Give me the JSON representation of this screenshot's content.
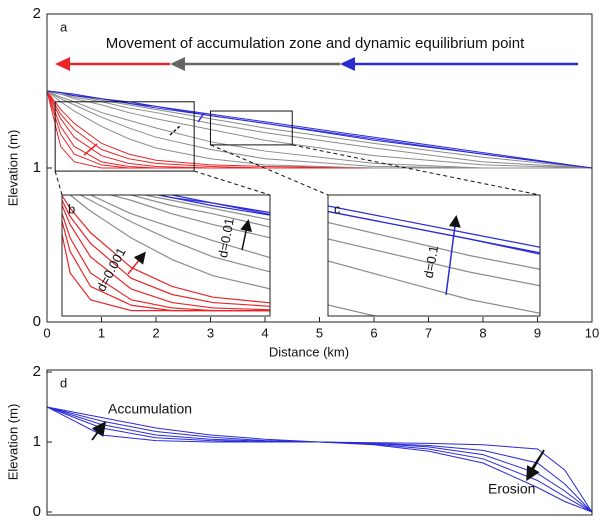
{
  "chart_data": [
    {
      "type": "line",
      "label": "a",
      "title": "Movement of accumulation zone and dynamic equilibrium point",
      "xlabel": "Distance (km)",
      "ylabel": "Elevation (m)",
      "xlim": [
        0,
        10
      ],
      "ylim": [
        0,
        2
      ],
      "xticks": [
        0,
        1,
        2,
        3,
        4,
        5,
        6,
        7,
        8,
        9,
        10
      ],
      "yticks": [
        0,
        1,
        2
      ],
      "x": [
        0,
        0.25,
        0.5,
        1,
        1.5,
        2,
        3,
        4,
        6,
        8,
        10
      ],
      "series": [
        {
          "color": "#e8262a",
          "values": [
            1.5,
            1.14,
            1.04,
            1.0,
            1.0,
            1.0,
            1.0,
            1.0,
            1.0,
            1.0,
            1.0
          ]
        },
        {
          "color": "#e8262a",
          "values": [
            1.5,
            1.22,
            1.09,
            1.02,
            1.0,
            1.0,
            1.0,
            1.0,
            1.0,
            1.0,
            1.0
          ]
        },
        {
          "color": "#e8262a",
          "values": [
            1.5,
            1.27,
            1.14,
            1.04,
            1.01,
            1.0,
            1.0,
            1.0,
            1.0,
            1.0,
            1.0
          ]
        },
        {
          "color": "#e8262a",
          "values": [
            1.5,
            1.32,
            1.2,
            1.08,
            1.03,
            1.01,
            1.0,
            1.0,
            1.0,
            1.0,
            1.0
          ]
        },
        {
          "color": "#e8262a",
          "values": [
            1.5,
            1.35,
            1.25,
            1.12,
            1.06,
            1.03,
            1.01,
            1.0,
            1.0,
            1.0,
            1.0
          ]
        },
        {
          "color": "#e8262a",
          "values": [
            1.5,
            1.38,
            1.29,
            1.16,
            1.09,
            1.05,
            1.02,
            1.01,
            1.0,
            1.0,
            1.0
          ]
        },
        {
          "color": "#8c8c8c",
          "values": [
            1.5,
            1.43,
            1.37,
            1.27,
            1.19,
            1.13,
            1.06,
            1.02,
            1.0,
            1.0,
            1.0
          ]
        },
        {
          "color": "#8c8c8c",
          "values": [
            1.5,
            1.45,
            1.41,
            1.33,
            1.26,
            1.2,
            1.12,
            1.06,
            1.01,
            1.0,
            1.0
          ]
        },
        {
          "color": "#8c8c8c",
          "values": [
            1.5,
            1.46,
            1.43,
            1.36,
            1.31,
            1.26,
            1.17,
            1.11,
            1.03,
            1.0,
            1.0
          ]
        },
        {
          "color": "#8c8c8c",
          "values": [
            1.5,
            1.48,
            1.45,
            1.41,
            1.36,
            1.32,
            1.25,
            1.18,
            1.08,
            1.02,
            1.0
          ]
        },
        {
          "color": "#8c8c8c",
          "values": [
            1.5,
            1.48,
            1.46,
            1.43,
            1.39,
            1.36,
            1.29,
            1.23,
            1.13,
            1.04,
            1.0
          ]
        },
        {
          "color": "#8c8c8c",
          "values": [
            1.5,
            1.48,
            1.47,
            1.44,
            1.41,
            1.38,
            1.32,
            1.26,
            1.16,
            1.07,
            1.0
          ]
        },
        {
          "color": "#2b2bd6",
          "values": [
            1.5,
            1.49,
            1.47,
            1.45,
            1.42,
            1.39,
            1.34,
            1.29,
            1.18,
            1.09,
            1.0
          ]
        },
        {
          "color": "#2b2bd6",
          "values": [
            1.5,
            1.49,
            1.47,
            1.45,
            1.42,
            1.4,
            1.34,
            1.29,
            1.19,
            1.09,
            1.0
          ]
        },
        {
          "color": "#2b2bd6",
          "values": [
            1.5,
            1.49,
            1.48,
            1.45,
            1.43,
            1.4,
            1.35,
            1.3,
            1.2,
            1.1,
            1.0
          ]
        }
      ]
    },
    {
      "type": "inset",
      "label": "b",
      "xlim": [
        0.15,
        2.7
      ],
      "ylim": [
        0.98,
        1.43
      ],
      "annotations": [
        "d=0.001",
        "d=0.01"
      ]
    },
    {
      "type": "inset",
      "label": "c",
      "xlim": [
        3.0,
        4.5
      ],
      "ylim": [
        1.15,
        1.37
      ],
      "annotations": [
        "d=0.1"
      ]
    },
    {
      "type": "line",
      "label": "d",
      "ylabel": "Elevation (m)",
      "xlim": [
        0,
        10
      ],
      "ylim": [
        0,
        2
      ],
      "yticks": [
        0,
        1,
        2
      ],
      "x": [
        0,
        1,
        2,
        3,
        4,
        5,
        6,
        7,
        8,
        9,
        9.5,
        10
      ],
      "color": "#2b2bd6",
      "annotations": [
        "Accumulation",
        "Erosion"
      ],
      "series": [
        {
          "values": [
            1.5,
            1.1,
            1.02,
            1.0,
            1.0,
            1.0,
            0.99,
            0.98,
            0.96,
            0.9,
            0.6,
            0
          ]
        },
        {
          "values": [
            1.5,
            1.2,
            1.06,
            1.02,
            1.0,
            1.0,
            0.98,
            0.95,
            0.88,
            0.7,
            0.4,
            0
          ]
        },
        {
          "values": [
            1.5,
            1.25,
            1.1,
            1.04,
            1.01,
            1.0,
            0.98,
            0.93,
            0.82,
            0.55,
            0.3,
            0
          ]
        },
        {
          "values": [
            1.5,
            1.3,
            1.15,
            1.07,
            1.02,
            1.0,
            0.97,
            0.9,
            0.76,
            0.45,
            0.22,
            0
          ]
        },
        {
          "values": [
            1.5,
            1.35,
            1.2,
            1.1,
            1.04,
            1.0,
            0.96,
            0.87,
            0.7,
            0.35,
            0.15,
            0
          ]
        }
      ]
    }
  ]
}
